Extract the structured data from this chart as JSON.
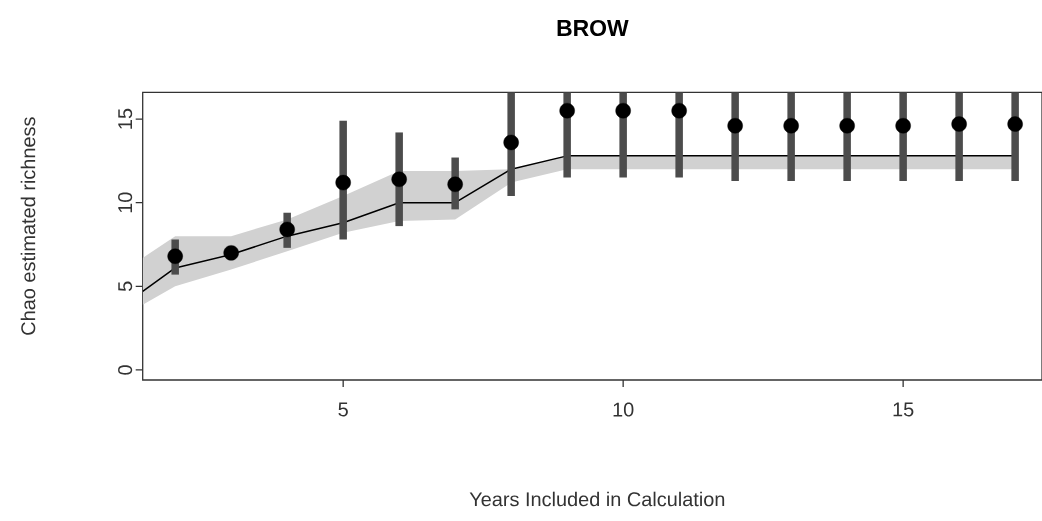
{
  "chart_data": {
    "type": "line",
    "title": "BROW",
    "xlabel": "Years Included in Calculation",
    "ylabel": "Chao estimated richness",
    "xlim": [
      1.42,
      17.48
    ],
    "ylim": [
      -0.6,
      16.6
    ],
    "xticks": [
      5,
      10,
      15
    ],
    "yticks": [
      0,
      5,
      10,
      15
    ],
    "grid": false,
    "series": [
      {
        "color": "#000000",
        "marker": "none",
        "line_style": "solid",
        "x": [
          1.42,
          2,
          3,
          4,
          5,
          6,
          7,
          8,
          9,
          10,
          11,
          12,
          13,
          14,
          15,
          16,
          17
        ],
        "values": [
          4.7,
          6.1,
          6.9,
          8.0,
          8.8,
          10.0,
          10.0,
          12.0,
          12.8,
          12.8,
          12.8,
          12.8,
          12.8,
          12.8,
          12.8,
          12.8,
          12.8
        ],
        "lower": [
          3.9,
          5.0,
          6.0,
          7.1,
          8.2,
          8.9,
          9.0,
          11.2,
          12.0,
          12.0,
          12.0,
          12.0,
          12.0,
          12.0,
          12.0,
          12.0,
          12.0
        ],
        "upper": [
          6.7,
          8.0,
          8.0,
          9.0,
          10.4,
          11.9,
          11.9,
          12.0,
          12.8,
          12.8,
          12.8,
          12.8,
          12.8,
          12.8,
          12.8,
          12.8,
          12.8
        ]
      },
      {
        "type": "scatter",
        "color": "#000000",
        "marker": "circle",
        "x": [
          2,
          3,
          4,
          5,
          6,
          7,
          8,
          9,
          10,
          11,
          12,
          13,
          14,
          15,
          16,
          17
        ],
        "values": [
          6.8,
          7.0,
          8.4,
          11.2,
          11.4,
          11.1,
          13.6,
          15.5,
          15.5,
          15.5,
          14.6,
          14.6,
          14.6,
          14.6,
          14.7,
          14.7
        ],
        "errors": [
          [
            5.7,
            7.8
          ],
          null,
          [
            7.3,
            9.4
          ],
          [
            7.8,
            14.9
          ],
          [
            8.6,
            14.2
          ],
          [
            9.6,
            12.7
          ],
          [
            10.4,
            16.6
          ],
          [
            11.5,
            16.6
          ],
          [
            11.5,
            16.6
          ],
          [
            11.5,
            16.6
          ],
          [
            11.3,
            16.6
          ],
          [
            11.3,
            16.6
          ],
          [
            11.3,
            16.6
          ],
          [
            11.3,
            16.6
          ],
          [
            11.3,
            16.6
          ],
          [
            11.3,
            16.6
          ]
        ]
      }
    ]
  }
}
